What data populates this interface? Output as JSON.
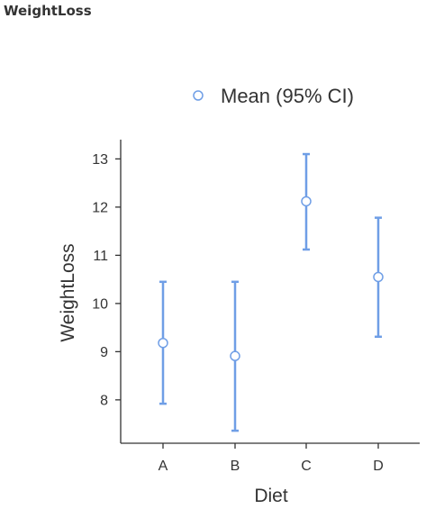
{
  "page": {
    "title": "WeightLoss"
  },
  "legend": {
    "label": "Mean (95% CI)"
  },
  "colors": {
    "series": "#6f9ee6",
    "axis": "#333333",
    "marker_fill": "#ffffff"
  },
  "chart_data": {
    "type": "scatter",
    "xlabel": "Diet",
    "ylabel": "WeightLoss",
    "categories": [
      "A",
      "B",
      "C",
      "D"
    ],
    "series": [
      {
        "name": "Mean (95% CI)",
        "mean": [
          9.18,
          8.91,
          12.12,
          10.55
        ],
        "ci_lower": [
          7.92,
          7.36,
          11.12,
          9.31
        ],
        "ci_upper": [
          10.45,
          10.45,
          13.1,
          11.78
        ]
      }
    ],
    "yticks": [
      8,
      9,
      10,
      11,
      12,
      13
    ],
    "ylim": [
      7.1,
      13.4
    ],
    "grid": false,
    "legend_position": "top"
  }
}
